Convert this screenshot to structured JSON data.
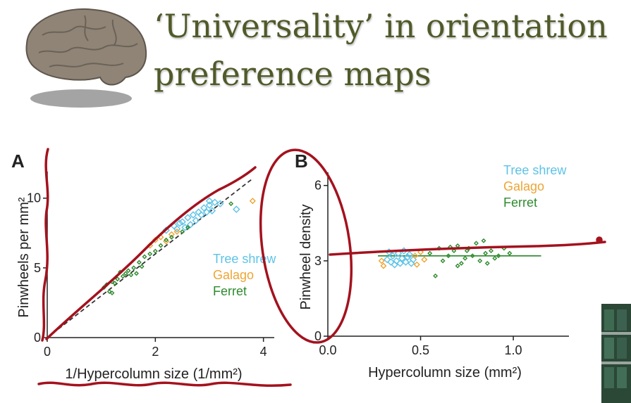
{
  "slide": {
    "title_line1": "‘Universality’ in orientation",
    "title_line2": "preference maps"
  },
  "colors": {
    "title": "#4f5a29",
    "tree_shrew": "#5ec3e6",
    "galago": "#eda535",
    "ferret": "#2e8b2e",
    "annotation": "#a3121e"
  },
  "chart_data": [
    {
      "panel": "A",
      "type": "scatter",
      "xlabel": "1/Hypercolumn size (1/mm²)",
      "ylabel": "Pinwheels per mm²",
      "xlim": [
        0,
        4.2
      ],
      "ylim": [
        0,
        11.5
      ],
      "xticks": [
        "0",
        "2",
        "4"
      ],
      "yticks": [
        "0",
        "5",
        "10"
      ],
      "legend": [
        "Tree shrew",
        "Galago",
        "Ferret"
      ],
      "legend_position": "right",
      "series": [
        {
          "name": "Tree shrew",
          "points": [
            [
              2.2,
              7.7
            ],
            [
              2.35,
              8.0
            ],
            [
              2.5,
              8.3
            ],
            [
              2.6,
              8.6
            ],
            [
              2.7,
              8.8
            ],
            [
              2.8,
              9.0
            ],
            [
              2.9,
              9.3
            ],
            [
              3.0,
              9.5
            ],
            [
              3.1,
              9.7
            ],
            [
              2.4,
              7.8
            ],
            [
              2.65,
              8.1
            ],
            [
              2.85,
              8.8
            ],
            [
              2.95,
              9.0
            ],
            [
              3.05,
              9.1
            ],
            [
              3.2,
              9.6
            ],
            [
              2.55,
              7.9
            ],
            [
              2.75,
              8.4
            ],
            [
              3.5,
              9.2
            ],
            [
              2.45,
              8.2
            ],
            [
              3.0,
              9.8
            ]
          ]
        },
        {
          "name": "Galago",
          "points": [
            [
              1.9,
              6.6
            ],
            [
              2.0,
              7.0
            ],
            [
              2.1,
              7.2
            ],
            [
              2.3,
              7.4
            ],
            [
              2.4,
              7.6
            ],
            [
              2.2,
              6.9
            ],
            [
              3.8,
              9.8
            ]
          ]
        },
        {
          "name": "Ferret",
          "points": [
            [
              1.05,
              3.6
            ],
            [
              1.1,
              3.8
            ],
            [
              1.2,
              4.0
            ],
            [
              1.25,
              3.9
            ],
            [
              1.3,
              4.2
            ],
            [
              1.4,
              4.4
            ],
            [
              1.45,
              4.6
            ],
            [
              1.5,
              4.8
            ],
            [
              1.55,
              4.5
            ],
            [
              1.6,
              5.0
            ],
            [
              1.7,
              5.4
            ],
            [
              1.8,
              5.8
            ],
            [
              1.9,
              6.0
            ],
            [
              2.0,
              6.2
            ],
            [
              2.1,
              6.6
            ],
            [
              2.2,
              7.0
            ],
            [
              2.3,
              7.2
            ],
            [
              1.15,
              3.3
            ],
            [
              1.35,
              4.7
            ],
            [
              1.75,
              5.1
            ],
            [
              2.5,
              7.6
            ],
            [
              2.6,
              7.9
            ],
            [
              1.2,
              3.2
            ],
            [
              1.65,
              4.6
            ],
            [
              3.4,
              9.6
            ]
          ]
        }
      ],
      "fit_line": [
        [
          0,
          0
        ],
        [
          3.8,
          11.4
        ]
      ]
    },
    {
      "panel": "B",
      "type": "scatter",
      "xlabel": "Hypercolumn size (mm²)",
      "ylabel": "Pinwheel density",
      "xlim": [
        0,
        1.3
      ],
      "ylim": [
        0,
        6.3
      ],
      "xticks": [
        "0.0",
        "0.5",
        "1.0"
      ],
      "yticks": [
        "0",
        "3",
        "6"
      ],
      "legend": [
        "Tree shrew",
        "Galago",
        "Ferret"
      ],
      "legend_position": "top-right",
      "series": [
        {
          "name": "Tree shrew",
          "points": [
            [
              0.32,
              3.05
            ],
            [
              0.35,
              3.2
            ],
            [
              0.38,
              3.3
            ],
            [
              0.4,
              3.1
            ],
            [
              0.42,
              2.95
            ],
            [
              0.36,
              2.85
            ],
            [
              0.44,
              3.25
            ],
            [
              0.46,
              3.05
            ],
            [
              0.33,
              3.35
            ],
            [
              0.39,
              2.9
            ],
            [
              0.41,
              3.4
            ],
            [
              0.37,
              3.0
            ],
            [
              0.43,
              3.15
            ],
            [
              0.34,
              2.95
            ],
            [
              0.45,
              2.9
            ]
          ]
        },
        {
          "name": "Galago",
          "points": [
            [
              0.3,
              2.8
            ],
            [
              0.47,
              3.2
            ],
            [
              0.5,
              3.35
            ],
            [
              0.52,
              3.05
            ],
            [
              0.29,
              3.0
            ],
            [
              0.48,
              2.85
            ]
          ]
        },
        {
          "name": "Ferret",
          "points": [
            [
              0.55,
              3.3
            ],
            [
              0.6,
              3.5
            ],
            [
              0.65,
              3.2
            ],
            [
              0.7,
              3.6
            ],
            [
              0.75,
              3.4
            ],
            [
              0.8,
              3.7
            ],
            [
              0.85,
              3.3
            ],
            [
              0.9,
              3.1
            ],
            [
              0.95,
              3.5
            ],
            [
              0.62,
              3.0
            ],
            [
              0.68,
              3.4
            ],
            [
              0.72,
              2.9
            ],
            [
              0.78,
              3.2
            ],
            [
              0.82,
              3.0
            ],
            [
              0.88,
              3.4
            ],
            [
              0.92,
              3.2
            ],
            [
              0.66,
              3.55
            ],
            [
              0.74,
              3.1
            ],
            [
              0.84,
              3.8
            ],
            [
              0.98,
              3.3
            ],
            [
              0.58,
              2.4
            ],
            [
              0.7,
              2.8
            ],
            [
              0.76,
              3.5
            ],
            [
              0.86,
              2.9
            ]
          ]
        }
      ],
      "fit_line": [
        [
          0.27,
          3.2
        ],
        [
          1.15,
          3.2
        ]
      ]
    }
  ]
}
